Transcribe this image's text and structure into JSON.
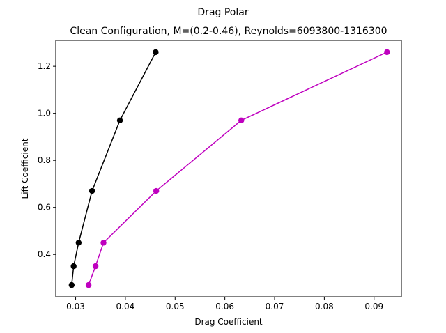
{
  "chart_data": {
    "type": "line",
    "suptitle": "Drag Polar",
    "title": "Clean Configuration, M=(0.2-0.46), Reynolds=6093800-1316300",
    "xlabel": "Drag Coefficient",
    "ylabel": "Lift Coefficient",
    "xlim": [
      0.026,
      0.0955
    ],
    "ylim": [
      0.22,
      1.31
    ],
    "grid": false,
    "x_ticks": [
      0.03,
      0.04,
      0.05,
      0.06,
      0.07,
      0.08,
      0.09
    ],
    "x_tick_labels": [
      "0.03",
      "0.04",
      "0.05",
      "0.06",
      "0.07",
      "0.08",
      "0.09"
    ],
    "y_ticks": [
      0.4,
      0.6,
      0.8,
      1.0,
      1.2
    ],
    "y_tick_labels": [
      "0.4",
      "0.6",
      "0.8",
      "1.0",
      "1.2"
    ],
    "series": [
      {
        "color": "#000000",
        "x": [
          0.0292,
          0.0296,
          0.0306,
          0.0333,
          0.0389,
          0.0461
        ],
        "y": [
          0.27,
          0.35,
          0.45,
          0.67,
          0.97,
          1.26
        ]
      },
      {
        "color": "#bf00bf",
        "x": [
          0.0326,
          0.034,
          0.0356,
          0.0462,
          0.0633,
          0.0926
        ],
        "y": [
          0.27,
          0.35,
          0.45,
          0.67,
          0.97,
          1.26
        ]
      }
    ]
  }
}
